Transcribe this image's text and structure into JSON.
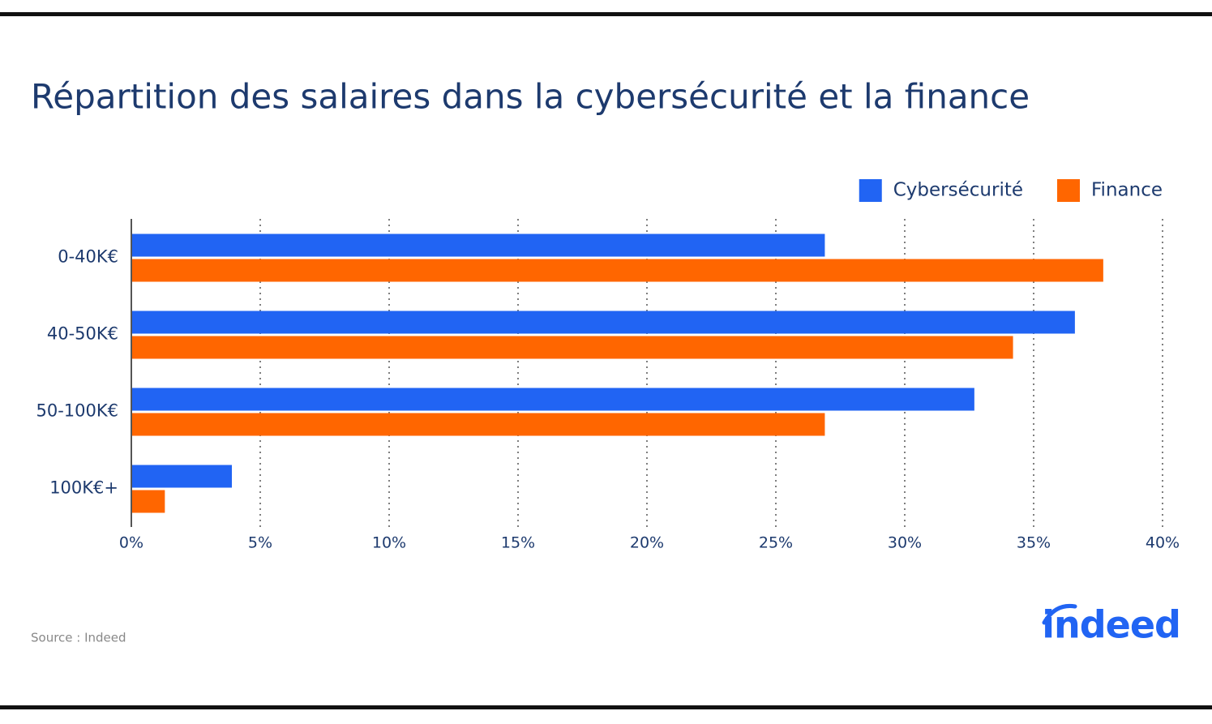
{
  "chart_data": {
    "type": "hbar",
    "title": "Répartition des salaires dans la cybersécurité et la finance",
    "categories": [
      "0-40K€",
      "40-50K€",
      "50-100K€",
      "100K€+"
    ],
    "series": [
      {
        "name": "Cybersécurité",
        "color": "#2164f3",
        "values": [
          26.9,
          36.6,
          32.7,
          3.9
        ]
      },
      {
        "name": "Finance",
        "color": "#ff6600",
        "values": [
          37.7,
          34.2,
          26.9,
          1.3
        ]
      }
    ],
    "xlim": [
      0,
      40
    ],
    "xticks": [
      {
        "value": 0,
        "label": "0%"
      },
      {
        "value": 5,
        "label": "5%"
      },
      {
        "value": 10,
        "label": "10%"
      },
      {
        "value": 15,
        "label": "15%"
      },
      {
        "value": 20,
        "label": "20%"
      },
      {
        "value": 25,
        "label": "25%"
      },
      {
        "value": 30,
        "label": "30%"
      },
      {
        "value": 35,
        "label": "35%"
      },
      {
        "value": 40,
        "label": "40%"
      }
    ],
    "grid": true,
    "legend": "top-right",
    "source": "Source : Indeed",
    "logo": "indeed"
  }
}
